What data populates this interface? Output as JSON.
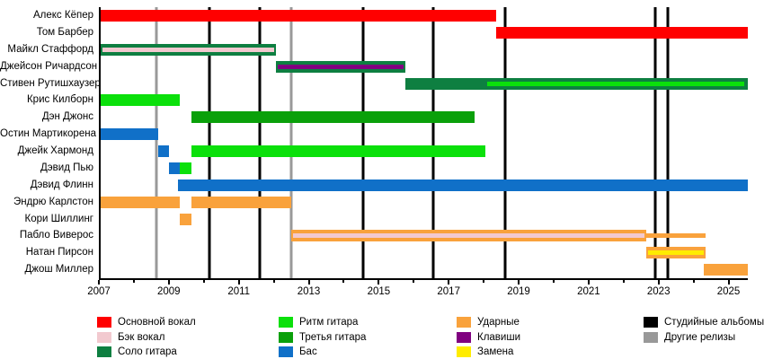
{
  "colors": {
    "lead_vocals": "#FF0000",
    "backing_vocals": "#F2C9CF",
    "solo_guitar": "#0E7F41",
    "rhythm_guitar": "#0BE00B",
    "third_guitar": "#0AA00A",
    "bass": "#1070C8",
    "drums": "#F9A23C",
    "keys": "#800080",
    "substitute": "#FFEC00",
    "studio_albums": "#000000",
    "other_releases": "#999999"
  },
  "chart_data": {
    "type": "gantt",
    "title": "",
    "xlabel": "",
    "ylabel": "",
    "x_range": [
      2007,
      2025.5
    ],
    "x_ticks": [
      2007,
      2009,
      2011,
      2013,
      2015,
      2017,
      2019,
      2021,
      2023,
      2025
    ],
    "x_minor_ticks": [
      2008,
      2010,
      2012,
      2014,
      2016,
      2018,
      2020,
      2022,
      2024
    ],
    "grid": false,
    "legend_position": "bottom",
    "rows": [
      {
        "name": "Алекс Кёпер",
        "bars": [
          {
            "role": "lead_vocals",
            "start": 2007,
            "end": 2018.3
          }
        ]
      },
      {
        "name": "Том Барбер",
        "bars": [
          {
            "role": "lead_vocals",
            "start": 2018.3,
            "end": 2025.5
          }
        ]
      },
      {
        "name": "Майкл Стаффорд",
        "bars": [
          {
            "role": "solo_guitar",
            "start": 2007,
            "end": 2012
          },
          {
            "role": "backing_vocals",
            "start": 2007,
            "end": 2012,
            "style": "stripe"
          }
        ]
      },
      {
        "name": "Джейсон Ричардсон",
        "bars": [
          {
            "role": "solo_guitar",
            "start": 2012,
            "end": 2015.7
          },
          {
            "role": "keys",
            "start": 2012,
            "end": 2015.7,
            "style": "stripe"
          }
        ]
      },
      {
        "name": "Стивен Рутишхаузер",
        "bars": [
          {
            "role": "solo_guitar",
            "start": 2015.7,
            "end": 2025.5
          },
          {
            "role": "rhythm_guitar",
            "start": 2018,
            "end": 2025.45,
            "style": "stripe"
          }
        ]
      },
      {
        "name": "Крис Килборн",
        "bars": [
          {
            "role": "rhythm_guitar",
            "start": 2007,
            "end": 2009.25
          }
        ]
      },
      {
        "name": "Дэн Джонс",
        "bars": [
          {
            "role": "third_guitar",
            "start": 2009.6,
            "end": 2017.7
          }
        ]
      },
      {
        "name": "Остин Мартикорена",
        "bars": [
          {
            "role": "bass",
            "start": 2007,
            "end": 2008.65
          }
        ]
      },
      {
        "name": "Джейк Хармонд",
        "bars": [
          {
            "role": "bass",
            "start": 2008.65,
            "end": 2008.95
          },
          {
            "role": "rhythm_guitar",
            "start": 2009.6,
            "end": 2018
          }
        ]
      },
      {
        "name": "Дэвид Пью",
        "bars": [
          {
            "role": "bass",
            "start": 2008.95,
            "end": 2009.25
          },
          {
            "role": "rhythm_guitar",
            "start": 2009.25,
            "end": 2009.6
          }
        ]
      },
      {
        "name": "Дэвид Флинн",
        "bars": [
          {
            "role": "bass",
            "start": 2009.2,
            "end": 2025.5
          }
        ]
      },
      {
        "name": "Эндрю Карлстон",
        "bars": [
          {
            "role": "drums",
            "start": 2007,
            "end": 2009.25
          },
          {
            "role": "drums",
            "start": 2009.6,
            "end": 2012.45
          }
        ]
      },
      {
        "name": "Кори Шиллинг",
        "bars": [
          {
            "role": "drums",
            "start": 2009.25,
            "end": 2009.6
          }
        ]
      },
      {
        "name": "Пабло Виверос",
        "bars": [
          {
            "role": "drums",
            "start": 2012.45,
            "end": 2022.6
          },
          {
            "role": "backing_vocals",
            "start": 2012.45,
            "end": 2022.6,
            "style": "stripe"
          },
          {
            "role": "drums",
            "start": 2022.6,
            "end": 2024.3,
            "style": "thin"
          }
        ]
      },
      {
        "name": "Натан Пирсон",
        "bars": [
          {
            "role": "drums",
            "start": 2022.6,
            "end": 2024.3
          },
          {
            "role": "substitute",
            "start": 2022.6,
            "end": 2024.3,
            "style": "stripe"
          }
        ]
      },
      {
        "name": "Джош Миллер",
        "bars": [
          {
            "role": "drums",
            "start": 2024.25,
            "end": 2025.5
          }
        ]
      }
    ],
    "events": {
      "studio_albums": [
        2010.1,
        2011.55,
        2014.5,
        2016.5,
        2018.55,
        2022.85,
        2023.2
      ],
      "other_releases": [
        2008.6,
        2012.45
      ]
    }
  },
  "legend": {
    "columns": [
      {
        "items": [
          {
            "label": "Основной вокал",
            "color": "lead_vocals"
          },
          {
            "label": "Бэк вокал",
            "color": "backing_vocals"
          },
          {
            "label": "Соло гитара",
            "color": "solo_guitar"
          }
        ]
      },
      {
        "items": [
          {
            "label": "Ритм гитара",
            "color": "rhythm_guitar"
          },
          {
            "label": "Третья гитара",
            "color": "third_guitar"
          },
          {
            "label": "Бас",
            "color": "bass"
          }
        ]
      },
      {
        "items": [
          {
            "label": "Ударные",
            "color": "drums"
          },
          {
            "label": "Клавиши",
            "color": "keys"
          },
          {
            "label": "Замена",
            "color": "substitute"
          }
        ]
      },
      {
        "items": [
          {
            "label": "Студийные альбомы",
            "color": "studio_albums"
          },
          {
            "label": "Другие релизы",
            "color": "other_releases"
          }
        ]
      }
    ]
  }
}
